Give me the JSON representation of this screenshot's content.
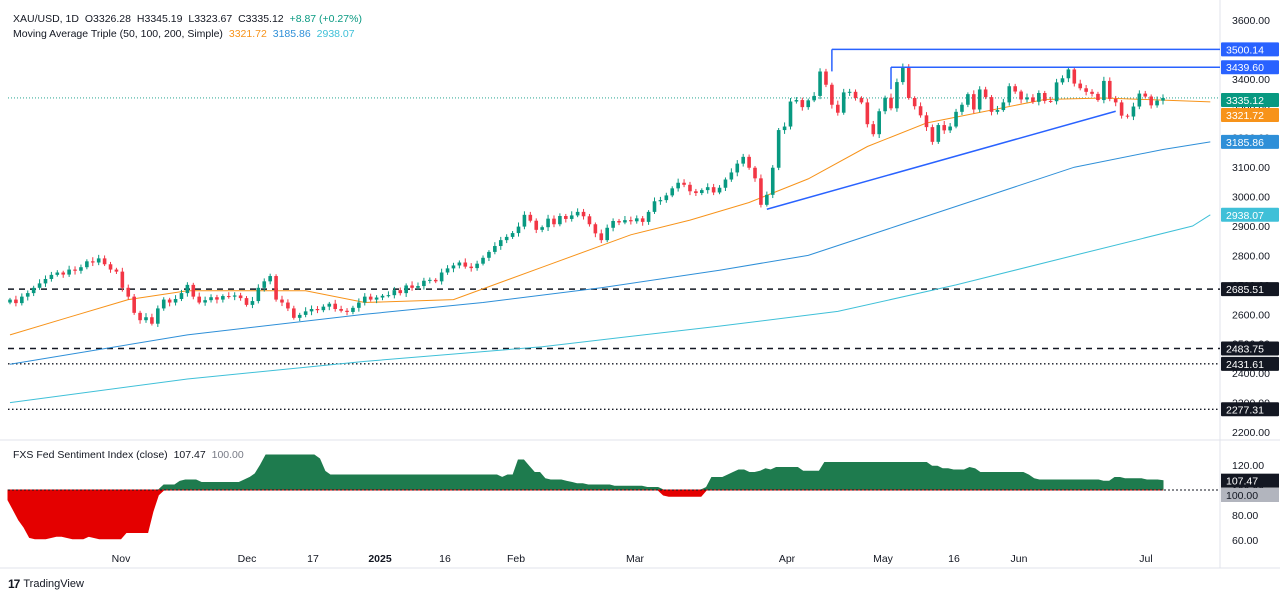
{
  "legend": {
    "symbol": "XAU/USD, 1D",
    "open": "O3326.28",
    "high": "H3345.19",
    "low": "L3323.67",
    "close": "C3335.12",
    "change": "+8.87 (+0.27%)",
    "ma_title": "Moving Average Triple (50, 100, 200, Simple)",
    "ma50": "3321.72",
    "ma100": "3185.86",
    "ma200": "2938.07",
    "fxs_title": "FXS Fed Sentiment Index (close)",
    "fxs_value": "107.47",
    "fxs_base": "100.00"
  },
  "colors": {
    "up": "#089981",
    "down": "#f23645",
    "ma50": "#f7931a",
    "ma100": "#2e8fd8",
    "ma200": "#3fc0d8",
    "trend": "#2962ff",
    "fxs_pos": "#1e7b4e",
    "fxs_neg": "#e40000"
  },
  "footer": {
    "brand": "TradingView",
    "icon": "tradingview-logo-icon"
  },
  "chart_data": [
    {
      "type": "candlestick",
      "title": "XAU/USD, 1D",
      "x_ticks": [
        "Nov",
        "Dec",
        "17",
        "2025",
        "16",
        "Feb",
        "Mar",
        "Apr",
        "May",
        "16",
        "Jun",
        "Jul"
      ],
      "y_ticks": [
        2200,
        2300,
        2400,
        2500,
        2600,
        2700,
        2800,
        2900,
        3000,
        3100,
        3200,
        3300,
        3400,
        3500,
        3600
      ],
      "ylim": [
        2190,
        3640
      ],
      "last_price": 3335.12,
      "price_labels": [
        {
          "value": 3500.14,
          "style": "blue"
        },
        {
          "value": 3439.6,
          "style": "blue"
        },
        {
          "value": 3335.12,
          "style": "green"
        },
        {
          "value": 3321.72,
          "style": "orange"
        },
        {
          "value": 3185.86,
          "style": "sky"
        },
        {
          "value": 2938.07,
          "style": "cyan"
        },
        {
          "value": 2685.51,
          "style": "dark"
        },
        {
          "value": 2483.75,
          "style": "dark"
        },
        {
          "value": 2431.61,
          "style": "dark"
        },
        {
          "value": 2277.31,
          "style": "dark"
        }
      ],
      "horizontal_levels": [
        {
          "value": 2685.51,
          "style": "dashed"
        },
        {
          "value": 2483.75,
          "style": "dashed"
        },
        {
          "value": 2431.61,
          "style": "dotted"
        },
        {
          "value": 2277.31,
          "style": "dotted"
        }
      ],
      "resistance_lines": [
        {
          "value": 3500.14,
          "from_index": 139
        },
        {
          "value": 3439.6,
          "from_index": 149
        }
      ],
      "trendline": {
        "from": [
          128,
          2957
        ],
        "to": [
          187,
          3290
        ]
      },
      "closes": [
        2650,
        2638,
        2660,
        2672,
        2690,
        2705,
        2720,
        2734,
        2742,
        2735,
        2752,
        2748,
        2760,
        2780,
        2776,
        2790,
        2770,
        2752,
        2745,
        2690,
        2660,
        2605,
        2580,
        2590,
        2568,
        2620,
        2650,
        2640,
        2652,
        2672,
        2700,
        2660,
        2640,
        2648,
        2658,
        2650,
        2662,
        2660,
        2664,
        2655,
        2632,
        2645,
        2690,
        2712,
        2730,
        2650,
        2640,
        2620,
        2588,
        2598,
        2610,
        2618,
        2614,
        2626,
        2636,
        2618,
        2612,
        2608,
        2622,
        2640,
        2660,
        2650,
        2657,
        2663,
        2665,
        2682,
        2672,
        2698,
        2690,
        2696,
        2714,
        2717,
        2712,
        2742,
        2756,
        2766,
        2776,
        2762,
        2757,
        2772,
        2792,
        2812,
        2832,
        2852,
        2863,
        2876,
        2898,
        2938,
        2918,
        2887,
        2896,
        2925,
        2906,
        2934,
        2924,
        2936,
        2948,
        2933,
        2906,
        2875,
        2852,
        2894,
        2917,
        2912,
        2920,
        2916,
        2926,
        2914,
        2948,
        2984,
        2988,
        3004,
        3028,
        3047,
        3040,
        3018,
        3012,
        3022,
        3032,
        3014,
        3030,
        3058,
        3082,
        3112,
        3135,
        3098,
        3062,
        2972,
        3006,
        3098,
        3226,
        3238,
        3323,
        3328,
        3304,
        3327,
        3342,
        3425,
        3380,
        3312,
        3285,
        3354,
        3356,
        3335,
        3320,
        3246,
        3212,
        3290,
        3336,
        3300,
        3389,
        3442,
        3335,
        3307,
        3276,
        3236,
        3186,
        3243,
        3225,
        3238,
        3288,
        3312,
        3348,
        3296,
        3364,
        3338,
        3288,
        3294,
        3320,
        3375,
        3357,
        3330,
        3337,
        3322,
        3352,
        3325,
        3324,
        3388,
        3402,
        3432,
        3384,
        3368,
        3356,
        3349,
        3328,
        3393,
        3332,
        3320,
        3275,
        3272,
        3306,
        3350,
        3340,
        3310,
        3326,
        3335.12
      ],
      "series": [
        {
          "name": "MA 50",
          "value": 3321.72
        },
        {
          "name": "MA 100",
          "value": 3185.86
        },
        {
          "name": "MA 200",
          "value": 2938.07
        }
      ]
    },
    {
      "type": "area",
      "title": "FXS Fed Sentiment Index (close)",
      "y_ticks": [
        60,
        80,
        100,
        120
      ],
      "ylim": [
        50,
        138
      ],
      "baseline": 100,
      "last_value": 107.47,
      "values": [
        92,
        84,
        76,
        70,
        62,
        61,
        61,
        61,
        62,
        63,
        63,
        62,
        61,
        61,
        61,
        63,
        62,
        61,
        61,
        61,
        61,
        61,
        66,
        66,
        66,
        66,
        66,
        83,
        96,
        104,
        104,
        104,
        107,
        108,
        108,
        108,
        106,
        106,
        106,
        106,
        106,
        106,
        106,
        106,
        108,
        110,
        113,
        120,
        128,
        128,
        128,
        128,
        128,
        128,
        128,
        128,
        128,
        128,
        125,
        115,
        112,
        112,
        112,
        112,
        112,
        112,
        112,
        112,
        112,
        112,
        112,
        112,
        112,
        112,
        112,
        112,
        112,
        112,
        112,
        112,
        112,
        112,
        112,
        112,
        112,
        112,
        112,
        112,
        112,
        112,
        112,
        112,
        110,
        112,
        112,
        124,
        124,
        119,
        114,
        114,
        109,
        108,
        108,
        108,
        107,
        106,
        105,
        105,
        104,
        104,
        104,
        104,
        104,
        103,
        103,
        103,
        103,
        103,
        103,
        102,
        102,
        102,
        96,
        95,
        95,
        95,
        95,
        95,
        95,
        95,
        102,
        110,
        110,
        110,
        112,
        114,
        116,
        116,
        114,
        114,
        115,
        117,
        116,
        118,
        118,
        118,
        118,
        118,
        115,
        115,
        115,
        115,
        122,
        122,
        122,
        122,
        122,
        122,
        122,
        122,
        122,
        122,
        122,
        122,
        122,
        122,
        122,
        122,
        122,
        122,
        122,
        122,
        119,
        119,
        117,
        117,
        116,
        116,
        116,
        118,
        117,
        114,
        114,
        114,
        114,
        114,
        114,
        114,
        114,
        114,
        112,
        109,
        108,
        108,
        108,
        108,
        108,
        108,
        108,
        108,
        108,
        108,
        108,
        108,
        107,
        107,
        110,
        110,
        109,
        109,
        109,
        109,
        108,
        108,
        108,
        107.47
      ]
    }
  ]
}
